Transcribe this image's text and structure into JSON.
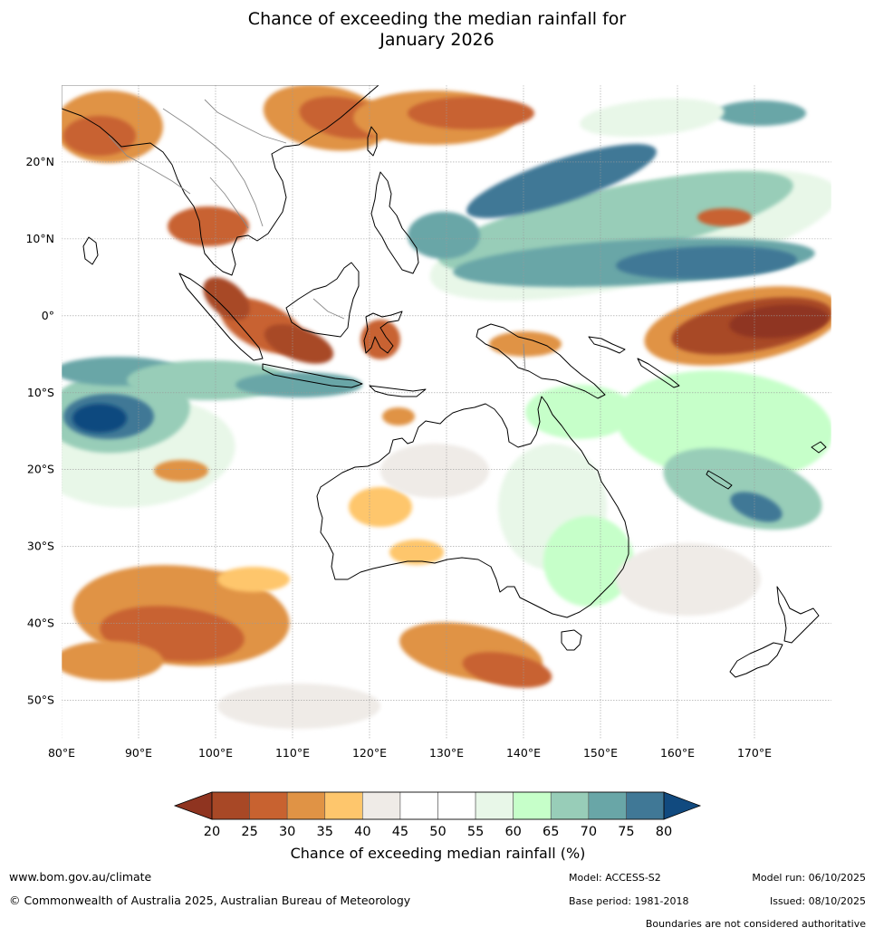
{
  "title": {
    "line1": "Chance of exceeding the median rainfall for",
    "line2": "January 2026"
  },
  "map": {
    "lon_range": [
      80,
      180
    ],
    "lat_range": [
      -55,
      30
    ],
    "lon_ticks": [
      {
        "value": 80,
        "label": "80°E"
      },
      {
        "value": 90,
        "label": "90°E"
      },
      {
        "value": 100,
        "label": "100°E"
      },
      {
        "value": 110,
        "label": "110°E"
      },
      {
        "value": 120,
        "label": "120°E"
      },
      {
        "value": 130,
        "label": "130°E"
      },
      {
        "value": 140,
        "label": "140°E"
      },
      {
        "value": 150,
        "label": "150°E"
      },
      {
        "value": 160,
        "label": "160°E"
      },
      {
        "value": 170,
        "label": "170°E"
      }
    ],
    "lat_ticks": [
      {
        "value": 20,
        "label": "20°N"
      },
      {
        "value": 10,
        "label": "10°N"
      },
      {
        "value": 0,
        "label": "0°"
      },
      {
        "value": -10,
        "label": "10°S"
      },
      {
        "value": -20,
        "label": "20°S"
      },
      {
        "value": -30,
        "label": "30°S"
      },
      {
        "value": -40,
        "label": "40°S"
      },
      {
        "value": -50,
        "label": "50°S"
      }
    ],
    "gridlines": true
  },
  "colorbar": {
    "title": "Chance of exceeding median rainfall (%)",
    "labels": [
      "20",
      "25",
      "30",
      "35",
      "40",
      "45",
      "50",
      "55",
      "60",
      "65",
      "70",
      "75",
      "80"
    ],
    "under_color": "#8f3420",
    "over_color": "#114a7f",
    "colors": [
      "#a84826",
      "#c86230",
      "#e09345",
      "#fec66c",
      "#efebe7",
      "#ffffff",
      "#ffffff",
      "#e8f7e8",
      "#c6ffc9",
      "#98cdb8",
      "#69a6a7",
      "#407896"
    ]
  },
  "footer": {
    "url": "www.bom.gov.au/climate",
    "copyright": "© Commonwealth of Australia 2025, Australian Bureau of Meteorology",
    "model": "Model: ACCESS-S2",
    "base_period": "Base period: 1981-2018",
    "model_run": "Model run: 06/10/2025",
    "issued": "Issued: 08/10/2025",
    "boundaries_note": "Boundaries are not considered authoritative"
  }
}
